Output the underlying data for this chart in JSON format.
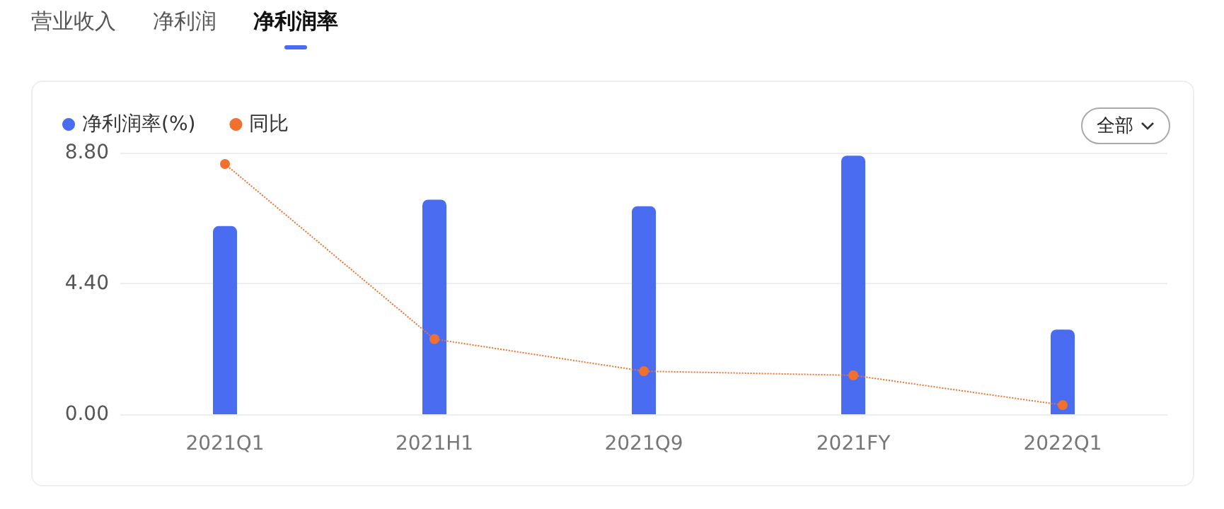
{
  "chart_data": {
    "type": "bar",
    "categories": [
      "2021Q1",
      "2021H1",
      "2021Q9",
      "2021FY",
      "2022Q1"
    ],
    "series": [
      {
        "name": "净利润率(%)",
        "color": "#4a6cf0",
        "values": [
          6.33,
          7.22,
          7.0,
          8.7,
          2.85
        ]
      },
      {
        "name": "同比",
        "type": "line",
        "color": "#f07030",
        "values": [
          8.42,
          2.53,
          1.45,
          1.31,
          0.31
        ],
        "marker": "circle",
        "line_style": "dotted"
      }
    ],
    "ylim": [
      0,
      8.8
    ],
    "yticks": [
      {
        "value": 0,
        "label": "0.00"
      },
      {
        "value": 4.4,
        "label": "4.40"
      },
      {
        "value": 8.8,
        "label": "8.80"
      }
    ],
    "grid": "y",
    "legend": "top left",
    "annotations": [
      "营业收入",
      "净利润",
      "净利润率",
      "全部"
    ]
  }
}
